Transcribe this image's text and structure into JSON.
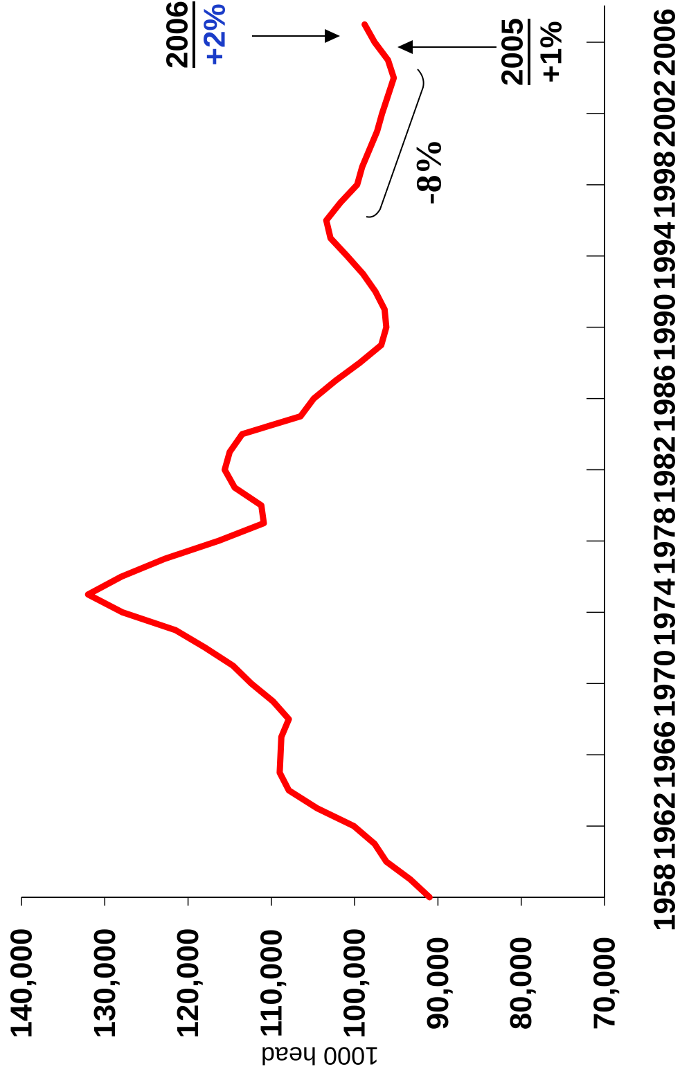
{
  "chart_data": {
    "type": "line",
    "ylabel": "1000 head",
    "xlabel": "",
    "title": "",
    "xlim": [
      1958,
      2007
    ],
    "ylim": [
      70000,
      140000
    ],
    "x_ticks": [
      1958,
      1962,
      1966,
      1970,
      1974,
      1978,
      1982,
      1986,
      1990,
      1994,
      1998,
      2002,
      2006
    ],
    "y_ticks": [
      70000,
      80000,
      90000,
      100000,
      110000,
      120000,
      130000,
      140000
    ],
    "y_tick_labels": [
      "70,000",
      "80,000",
      "90,000",
      "100,000",
      "110,000",
      "120,000",
      "130,000",
      "140,000"
    ],
    "grid": false,
    "line_color": "#ff0000",
    "series": [
      {
        "x": [
          1958,
          1959,
          1960,
          1961,
          1962,
          1963,
          1964,
          1965,
          1966,
          1967,
          1968,
          1969,
          1970,
          1971,
          1972,
          1973,
          1974,
          1975,
          1976,
          1977,
          1978,
          1979,
          1980,
          1981,
          1982,
          1983,
          1984,
          1985,
          1986,
          1987,
          1988,
          1989,
          1990,
          1991,
          1992,
          1993,
          1994,
          1995,
          1996,
          1997,
          1998,
          1999,
          2000,
          2001,
          2002,
          2003,
          2004,
          2005,
          2006,
          2007
        ],
        "values": [
          91000,
          93300,
          96200,
          97600,
          100100,
          104500,
          107900,
          109000,
          108900,
          108800,
          107900,
          109800,
          112400,
          114600,
          117900,
          121500,
          127900,
          132000,
          128000,
          122800,
          116400,
          110900,
          111200,
          114400,
          115600,
          115000,
          113500,
          106500,
          104900,
          102300,
          99400,
          96800,
          96200,
          96400,
          97500,
          99000,
          100900,
          102900,
          103400,
          101700,
          99700,
          99100,
          98200,
          97300,
          96700,
          96000,
          95300,
          96000,
          97600,
          98800
        ]
      }
    ],
    "annotations": {
      "bracket_label": "-8%",
      "ann_2005_year": "2005",
      "ann_2005_pct": "+1%",
      "ann_2006_year": "2006",
      "ann_2006_pct": "+2%",
      "ann_2006_pct_color": "#1a3cc8"
    }
  }
}
